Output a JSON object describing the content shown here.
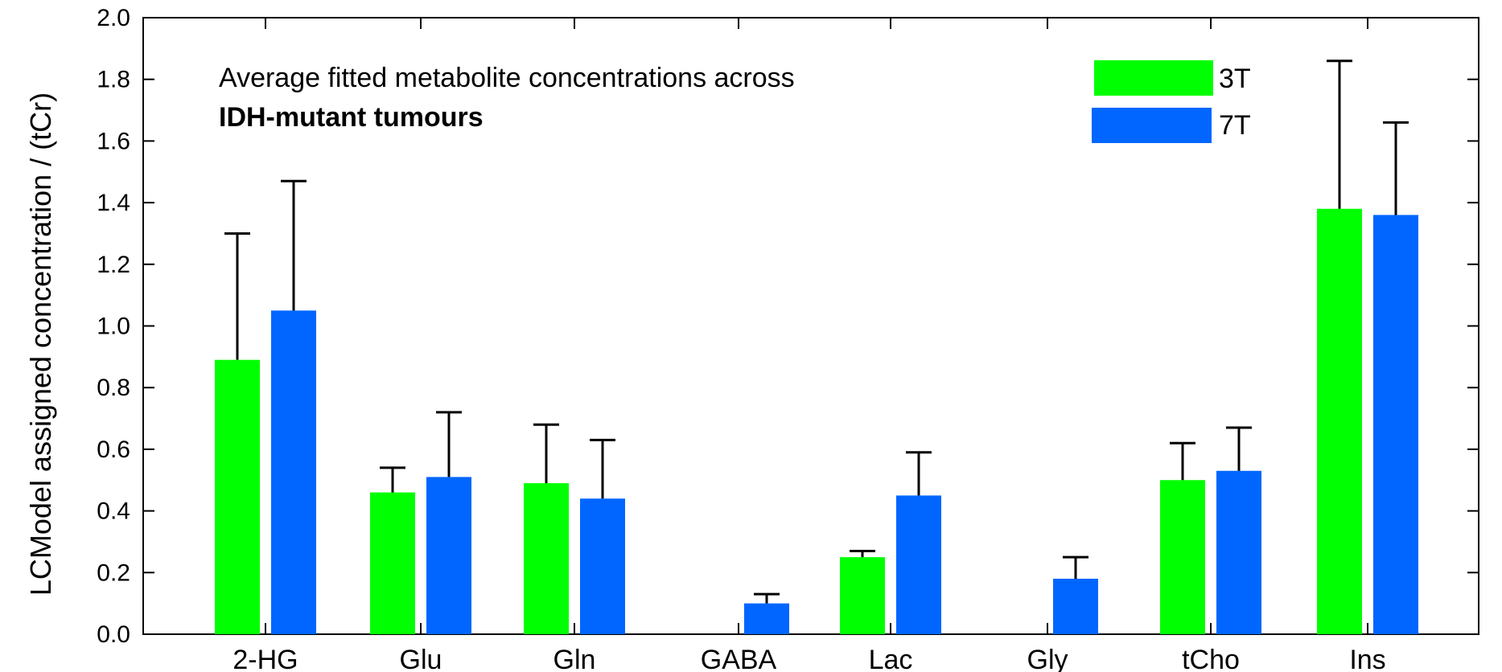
{
  "chart_data": {
    "type": "bar",
    "title": [
      "Average fitted metabolite concentrations across",
      "IDH-mutant tumours"
    ],
    "xlabel": "",
    "ylabel": "LCModel assigned concentration / (tCr)",
    "ylim": [
      0,
      2.0
    ],
    "yticks": [
      "0.0",
      "0.2",
      "0.4",
      "0.6",
      "0.8",
      "1.0",
      "1.2",
      "1.4",
      "1.6",
      "1.8",
      "2.0"
    ],
    "categories": [
      "2-HG",
      "Glu",
      "Gln",
      "GABA",
      "Lac",
      "Gly",
      "tCho",
      "Ins"
    ],
    "legend_position": "top-right",
    "series": [
      {
        "name": "3T",
        "color": "#00ff00",
        "values": [
          0.89,
          0.46,
          0.49,
          0.0,
          0.25,
          0.0,
          0.5,
          1.38
        ],
        "errors": [
          0.41,
          0.08,
          0.19,
          0.0,
          0.02,
          0.0,
          0.12,
          0.48
        ]
      },
      {
        "name": "7T",
        "color": "#0066ff",
        "values": [
          1.05,
          0.51,
          0.44,
          0.1,
          0.45,
          0.18,
          0.53,
          1.36
        ],
        "errors": [
          0.42,
          0.21,
          0.19,
          0.03,
          0.14,
          0.07,
          0.14,
          0.3
        ]
      }
    ]
  }
}
